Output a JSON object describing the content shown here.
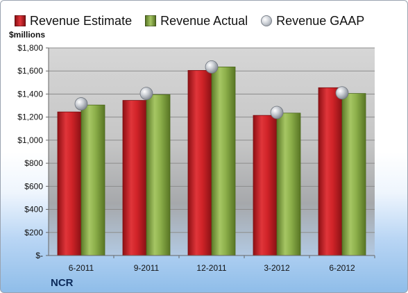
{
  "company": "NCR",
  "chart_data": {
    "type": "bar",
    "ylabel": "$millions",
    "ylim": [
      0,
      1800
    ],
    "yticks": [
      0,
      200,
      400,
      600,
      800,
      1000,
      1200,
      1400,
      1600,
      1800
    ],
    "ytick_labels": [
      "$-",
      "$200",
      "$400",
      "$600",
      "$800",
      "$1,000",
      "$1,200",
      "$1,400",
      "$1,600",
      "$1,800"
    ],
    "categories": [
      "6-2011",
      "9-2011",
      "12-2011",
      "3-2012",
      "6-2012"
    ],
    "legend_position": "top",
    "grid": true,
    "series": [
      {
        "name": "Revenue Estimate",
        "kind": "bar",
        "color": "#cc1f24",
        "values": [
          1245,
          1345,
          1605,
          1215,
          1455
        ]
      },
      {
        "name": "Revenue Actual",
        "kind": "bar",
        "color": "#8aac46",
        "values": [
          1305,
          1395,
          1635,
          1235,
          1405
        ]
      },
      {
        "name": "Revenue GAAP",
        "kind": "marker",
        "color": "#b8bcc3",
        "values": [
          1315,
          1405,
          1635,
          1240,
          1410
        ]
      }
    ]
  }
}
